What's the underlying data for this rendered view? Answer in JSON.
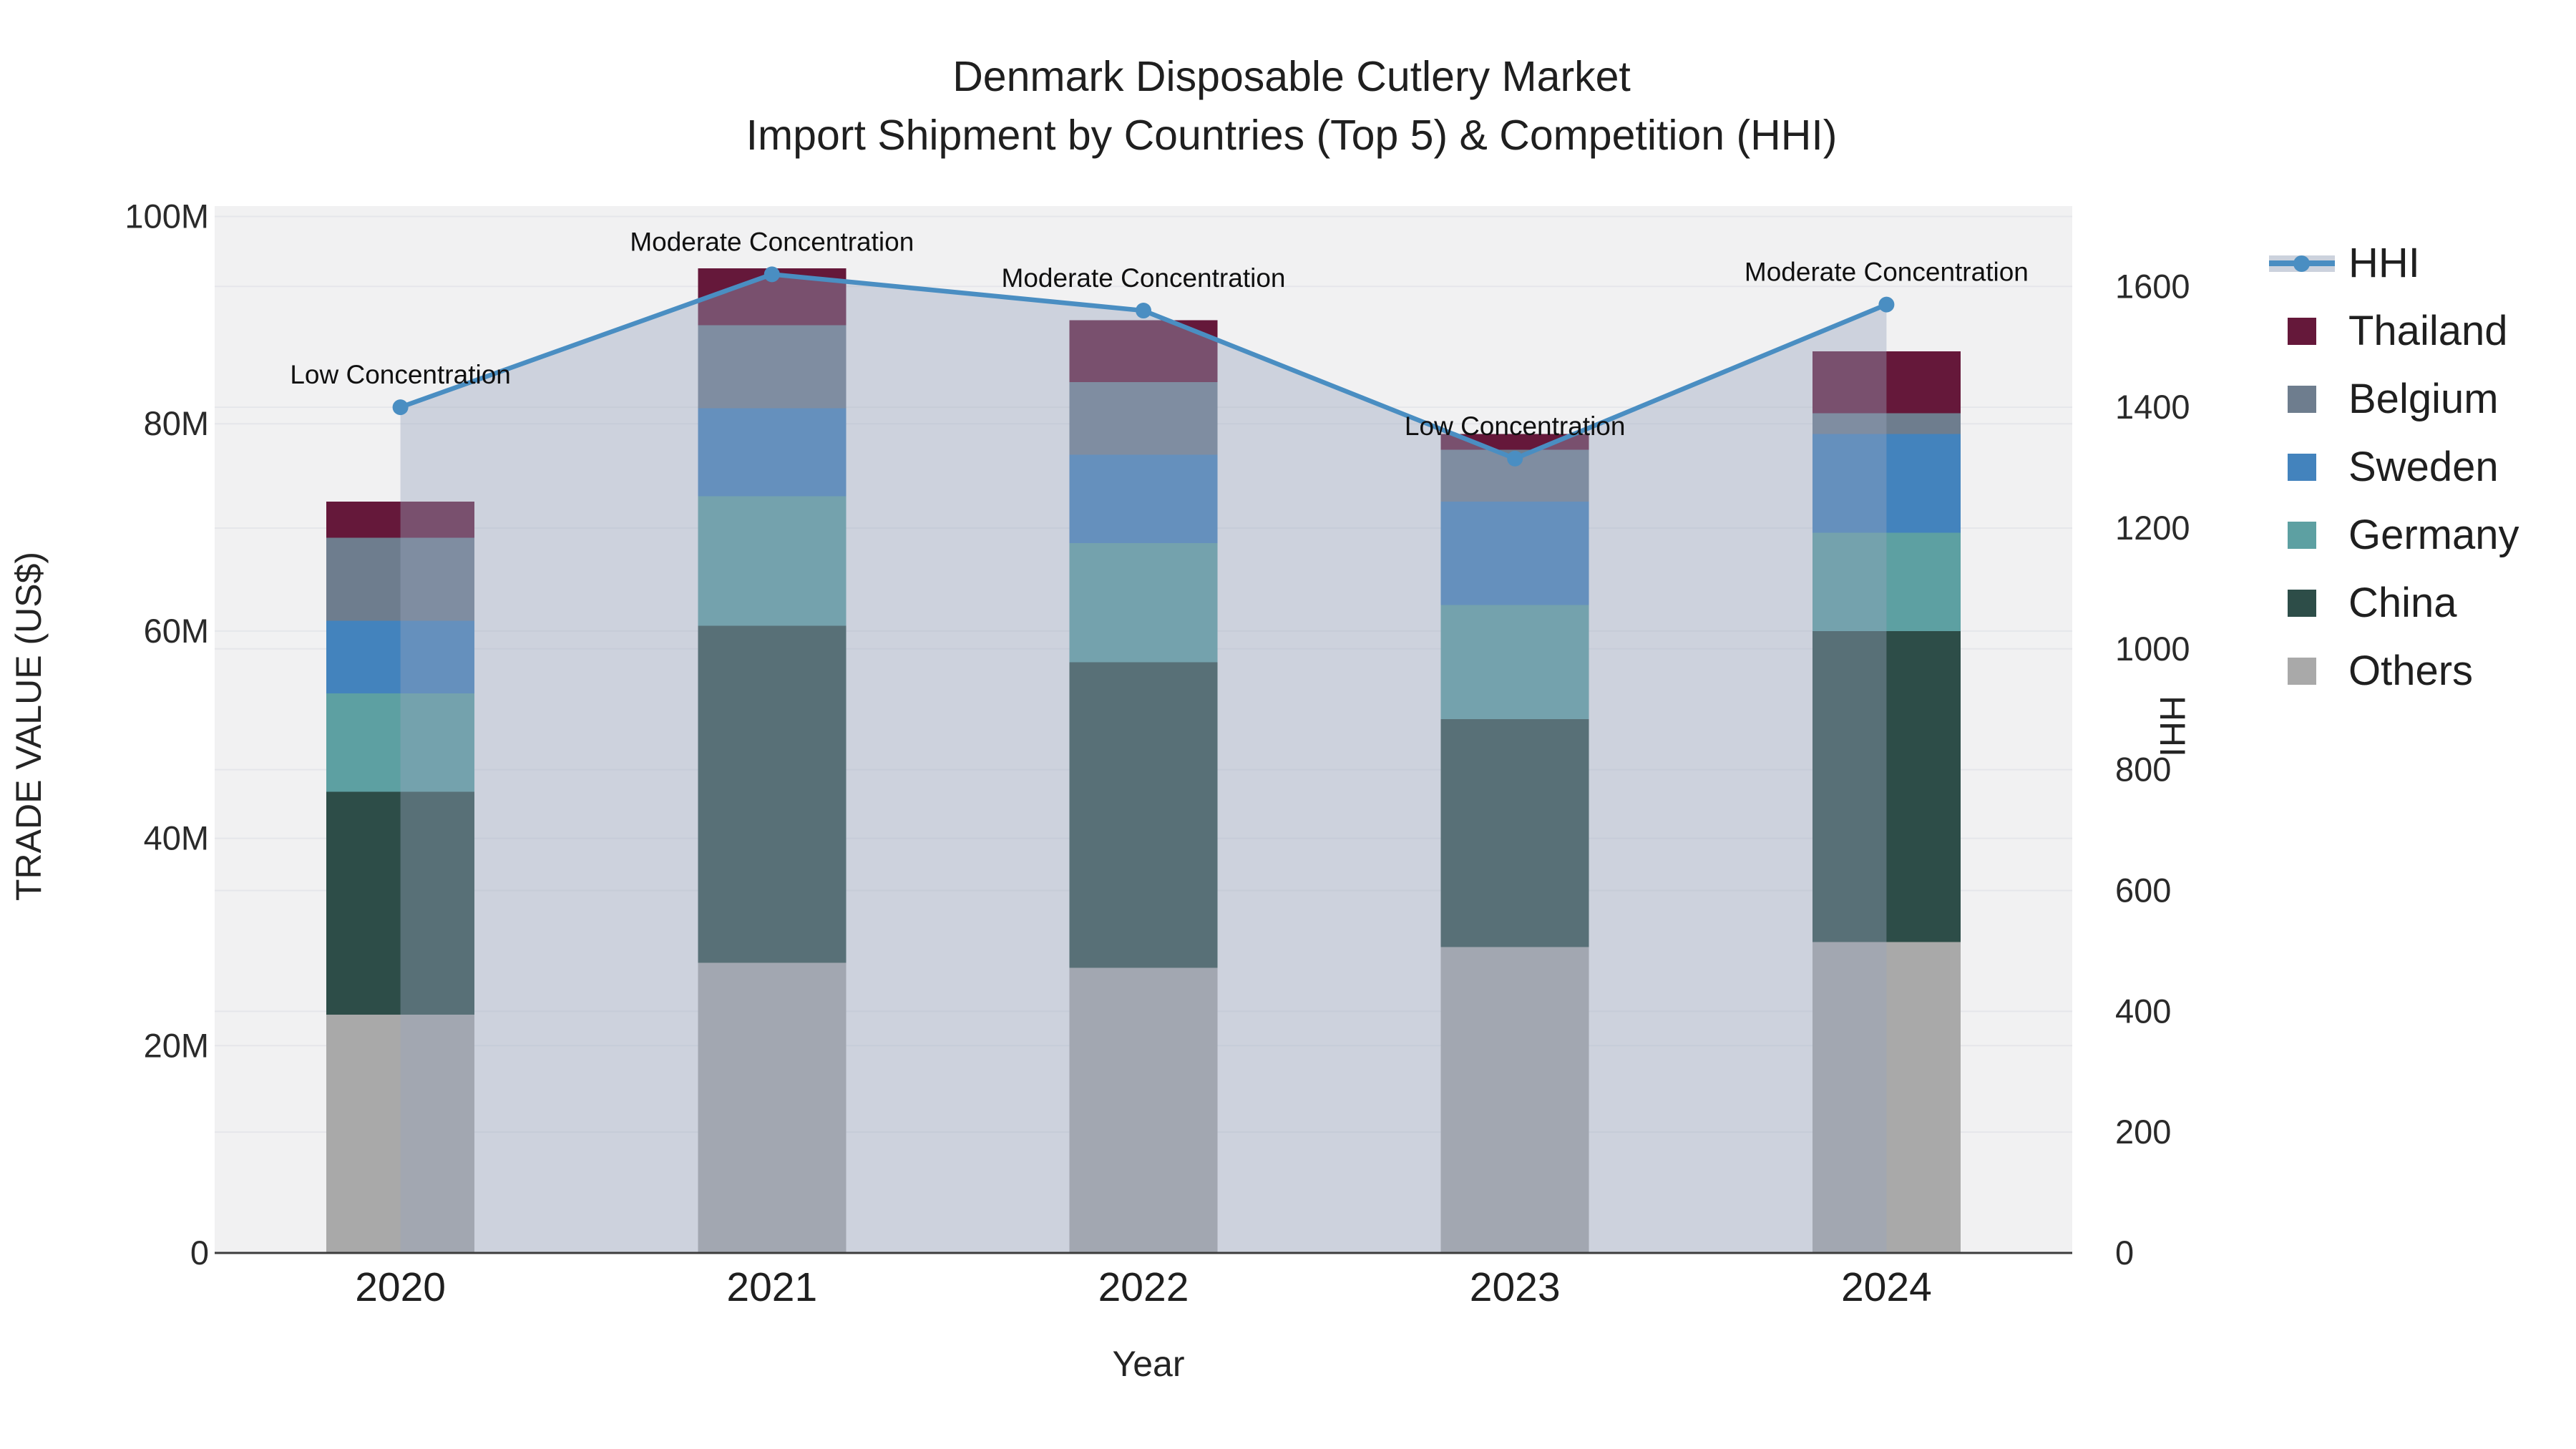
{
  "title": {
    "line1": "Denmark Disposable Cutlery Market",
    "line2": "Import Shipment by Countries (Top 5) & Competition (HHI)"
  },
  "axes": {
    "x_title": "Year",
    "y_left_title": "TRADE VALUE (US$)",
    "y_right_title": "HHI",
    "x_ticks": [
      "2020",
      "2021",
      "2022",
      "2023",
      "2024"
    ],
    "y_left_ticks": [
      {
        "value": 0,
        "label": "0"
      },
      {
        "value": 20,
        "label": "20M"
      },
      {
        "value": 40,
        "label": "40M"
      },
      {
        "value": 60,
        "label": "60M"
      },
      {
        "value": 80,
        "label": "80M"
      },
      {
        "value": 100,
        "label": "100M"
      }
    ],
    "y_right_ticks": [
      {
        "value": 0,
        "label": "0"
      },
      {
        "value": 200,
        "label": "200"
      },
      {
        "value": 400,
        "label": "400"
      },
      {
        "value": 600,
        "label": "600"
      },
      {
        "value": 800,
        "label": "800"
      },
      {
        "value": 1000,
        "label": "1000"
      },
      {
        "value": 1200,
        "label": "1200"
      },
      {
        "value": 1400,
        "label": "1400"
      },
      {
        "value": 1600,
        "label": "1600"
      }
    ]
  },
  "legend": {
    "items": [
      {
        "label": "HHI",
        "glyph": "line",
        "color": "#4a8ec2",
        "band_color": "#ccd2dd"
      },
      {
        "label": "Thailand",
        "glyph": "swatch",
        "color": "#65183a"
      },
      {
        "label": "Belgium",
        "glyph": "swatch",
        "color": "#6e7d8e"
      },
      {
        "label": "Sweden",
        "glyph": "swatch",
        "color": "#4383bd"
      },
      {
        "label": "Germany",
        "glyph": "swatch",
        "color": "#5da0a2"
      },
      {
        "label": "China",
        "glyph": "swatch",
        "color": "#2d4d48"
      },
      {
        "label": "Others",
        "glyph": "swatch",
        "color": "#a9a9a9"
      }
    ]
  },
  "chart_data": {
    "type": "combo-stacked-bar-line",
    "categories": [
      "2020",
      "2021",
      "2022",
      "2023",
      "2024"
    ],
    "values_unit": "million US$",
    "bar_series": [
      {
        "name": "Others",
        "color": "#a9a9a9",
        "values": [
          23,
          28,
          27.5,
          29.5,
          30
        ]
      },
      {
        "name": "China",
        "color": "#2d4d48",
        "values": [
          21.5,
          32.5,
          29.5,
          22,
          30
        ]
      },
      {
        "name": "Germany",
        "color": "#5da0a2",
        "values": [
          9.5,
          12.5,
          11.5,
          11,
          9.5
        ]
      },
      {
        "name": "Sweden",
        "color": "#4383bd",
        "values": [
          7,
          8.5,
          8.5,
          10,
          9.5
        ]
      },
      {
        "name": "Belgium",
        "color": "#6e7d8e",
        "values": [
          8,
          8,
          7,
          5,
          2
        ]
      },
      {
        "name": "Thailand",
        "color": "#65183a",
        "values": [
          3.5,
          5.5,
          6,
          1.5,
          6
        ]
      }
    ],
    "bar_totals": [
      72.5,
      95,
      90,
      79,
      87
    ],
    "line_series": {
      "name": "HHI",
      "color": "#4a8ec2",
      "area_fill": "rgba(153,165,189,0.40)",
      "values": [
        1400,
        1620,
        1560,
        1315,
        1570
      ]
    },
    "annotations": [
      {
        "x": "2020",
        "text": "Low Concentration"
      },
      {
        "x": "2021",
        "text": "Moderate Concentration"
      },
      {
        "x": "2022",
        "text": "Moderate Concentration"
      },
      {
        "x": "2023",
        "text": "Low Concentration"
      },
      {
        "x": "2024",
        "text": "Moderate Concentration"
      }
    ],
    "y_left_range": [
      0,
      101
    ],
    "y_right_range": [
      0,
      1733
    ],
    "grid": true,
    "legend_position": "right",
    "xlabel": "Year",
    "ylabel_left": "TRADE VALUE (US$)",
    "ylabel_right": "HHI"
  },
  "colors": {
    "page_bg": "#ffffff",
    "plot_bg": "#f1f1f2",
    "grid": "#e5e6ea",
    "axis_line": "#3c3c3c",
    "tick_text": "#2a2a2a",
    "annotation_text": "#101010"
  }
}
